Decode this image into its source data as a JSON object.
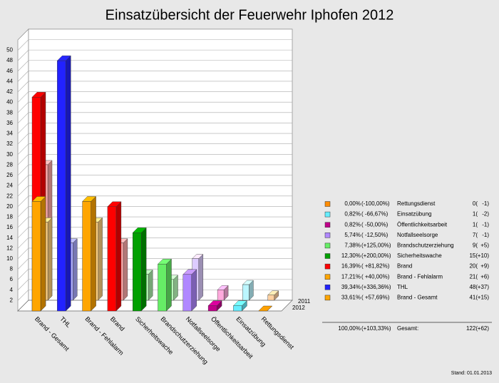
{
  "chart_data": {
    "type": "bar3d",
    "title": "Einsatzübersicht der Feuerwehr Iphofen 2012",
    "categories": [
      "Brand - Gesamt",
      "THL",
      "Brand - Fehlalarm",
      "Brand",
      "Sicherheitswache",
      "Brandschutzerziehung",
      "Notfallseelsorge",
      "Öffentlichkeitsarbeit",
      "Einsatzübung",
      "Rettungsdienst"
    ],
    "series": [
      {
        "name": "2012",
        "values": [
          41,
          48,
          21,
          20,
          15,
          9,
          7,
          1,
          1,
          0
        ],
        "colors": [
          "#ff0000",
          "#2222ff",
          "#ffa500",
          "#ff0000",
          "#00a000",
          "#66ee66",
          "#b088ff",
          "#c0008a",
          "#66eeff",
          "#ff8c00"
        ]
      },
      {
        "name": "2011",
        "values": [
          26,
          11,
          15,
          11,
          5,
          4,
          8,
          2,
          3,
          1
        ],
        "colors": [
          "#ffaaaa",
          "#aaaaff",
          "#ffd080",
          "#ffaaaa",
          "#aaeeaa",
          "#bbffbb",
          "#ddccff",
          "#ffaadd",
          "#bbf6ff",
          "#ffd0a0"
        ]
      }
    ],
    "ylim": [
      0,
      52
    ],
    "yticks": [
      2,
      4,
      6,
      8,
      10,
      12,
      14,
      16,
      18,
      20,
      22,
      24,
      26,
      28,
      30,
      32,
      34,
      36,
      38,
      40,
      42,
      44,
      46,
      48,
      50
    ],
    "grid": true
  },
  "table": {
    "rows": [
      {
        "color": "#ff8c00",
        "percent": "0,00%",
        "change": "(-100,00%)",
        "name": "Rettungsdienst",
        "count": "0(",
        "diff": "-1)"
      },
      {
        "color": "#66eeff",
        "percent": "0,82%",
        "change": "( -66,67%)",
        "name": "Einsatzübung",
        "count": "1(",
        "diff": "-2)"
      },
      {
        "color": "#c0008a",
        "percent": "0,82%",
        "change": "( -50,00%)",
        "name": "Öffentlichkeitsarbeit",
        "count": "1(",
        "diff": "-1)"
      },
      {
        "color": "#b088ff",
        "percent": "5,74%",
        "change": "( -12,50%)",
        "name": "Notfallseelsorge",
        "count": "7(",
        "diff": "-1)"
      },
      {
        "color": "#66ee66",
        "percent": "7,38%",
        "change": "(+125,00%)",
        "name": "Brandschutzerziehung",
        "count": "9(",
        "diff": "+5)"
      },
      {
        "color": "#00a000",
        "percent": "12,30%",
        "change": "(+200,00%)",
        "name": "Sicherheitswache",
        "count": "15(",
        "diff": "+10)"
      },
      {
        "color": "#ff0000",
        "percent": "16,39%",
        "change": "( +81,82%)",
        "name": "Brand",
        "count": "20(",
        "diff": "+9)"
      },
      {
        "color": "#ffa500",
        "percent": "17,21%",
        "change": "( +40,00%)",
        "name": "Brand - Fehlalarm",
        "count": "21(",
        "diff": "+6)"
      },
      {
        "color": "#2222ff",
        "percent": "39,34%",
        "change": "(+336,36%)",
        "name": "THL",
        "count": "48(",
        "diff": "+37)"
      },
      {
        "color": "#ffa500",
        "percent": "33,61%",
        "change": "( +57,69%)",
        "name": "Brand - Gesamt",
        "count": "41(",
        "diff": "+15)"
      }
    ],
    "total": {
      "percent": "100,00%",
      "change": "(+103,33%)",
      "name": "Gesamt:",
      "count": "122(",
      "diff": "+62)"
    }
  },
  "footer": "Stand: 01.01.2013"
}
